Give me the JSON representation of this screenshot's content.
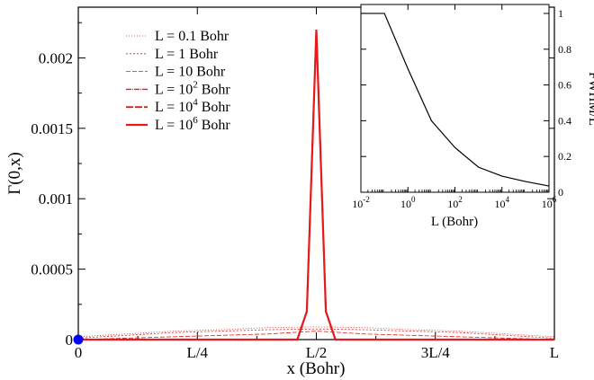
{
  "chart_data": [
    {
      "type": "line",
      "role": "main",
      "ylabel": "Γ(0,x)",
      "xlabel": "x (Bohr)",
      "ylim": [
        0,
        0.00236
      ],
      "xlim": [
        0,
        1
      ],
      "x_ticks": [
        {
          "value": 0,
          "label": "0"
        },
        {
          "value": 0.25,
          "label": "L/4"
        },
        {
          "value": 0.5,
          "label": "L/2"
        },
        {
          "value": 0.75,
          "label": "3L/4"
        },
        {
          "value": 1,
          "label": "L"
        }
      ],
      "y_ticks": [
        {
          "value": 0,
          "label": "0"
        },
        {
          "value": 0.0005,
          "label": "0.0005"
        },
        {
          "value": 0.001,
          "label": "0.001"
        },
        {
          "value": 0.0015,
          "label": "0.0015"
        },
        {
          "value": 0.002,
          "label": "0.002"
        }
      ],
      "grid": false,
      "legend_position": "top-left",
      "series": [
        {
          "name": "L = 0.1 Bohr",
          "legend_base": "L = 0.1 Bohr",
          "legend_exp": "",
          "color": "#e41a1c",
          "dash": "1,2",
          "width": 0.8,
          "x": [
            0,
            0.1,
            0.2,
            0.3,
            0.4,
            0.5,
            0.6,
            0.7,
            0.8,
            0.9,
            1.0
          ],
          "y": [
            2e-05,
            4e-05,
            6e-05,
            7e-05,
            8.5e-05,
            9e-05,
            8.5e-05,
            7e-05,
            6e-05,
            4e-05,
            2e-05
          ]
        },
        {
          "name": "L = 1 Bohr",
          "legend_base": "L = 1 Bohr",
          "legend_exp": "",
          "color": "#e41a1c",
          "dash": "2,2",
          "width": 0.8,
          "x": [
            0,
            0.1,
            0.2,
            0.3,
            0.4,
            0.5,
            0.6,
            0.7,
            0.8,
            0.9,
            1.0
          ],
          "y": [
            1e-05,
            3e-05,
            5e-05,
            6e-05,
            7e-05,
            7.5e-05,
            7e-05,
            6e-05,
            5e-05,
            3e-05,
            1e-05
          ]
        },
        {
          "name": "L = 10 Bohr",
          "legend_base": "L = 10 Bohr",
          "legend_exp": "",
          "color": "#e41a1c",
          "dash": "5,2",
          "width": 0.8,
          "x": [
            0,
            0.1,
            0.2,
            0.3,
            0.4,
            0.45,
            0.5,
            0.55,
            0.6,
            0.7,
            0.8,
            0.9,
            1.0
          ],
          "y": [
            0,
            1e-05,
            2e-05,
            3e-05,
            4e-05,
            5e-05,
            6e-05,
            5e-05,
            4e-05,
            3e-05,
            2e-05,
            1e-05,
            0
          ]
        },
        {
          "name": "L = 10^2 Bohr",
          "legend_base": "L = 10",
          "legend_exp": "2",
          "legend_tail": " Bohr",
          "color": "#e41a1c",
          "dash": "6,1,1,1",
          "width": 1.4,
          "x": [
            0,
            0.46,
            0.48,
            0.49,
            0.5,
            0.51,
            0.52,
            0.54,
            1.0
          ],
          "y": [
            0,
            0,
            0.0002,
            0.0012,
            0.0022,
            0.0012,
            0.0002,
            0,
            0
          ]
        },
        {
          "name": "L = 10^4 Bohr",
          "legend_base": "L = 10",
          "legend_exp": "4",
          "legend_tail": " Bohr",
          "color": "#e41a1c",
          "dash": "8,2",
          "width": 1.8,
          "x": [
            0,
            0.46,
            0.48,
            0.49,
            0.5,
            0.51,
            0.52,
            0.54,
            1.0
          ],
          "y": [
            0,
            0,
            0.0002,
            0.0012,
            0.0022,
            0.0012,
            0.0002,
            0,
            0
          ]
        },
        {
          "name": "L = 10^6 Bohr",
          "legend_base": "L = 10",
          "legend_exp": "6",
          "legend_tail": " Bohr",
          "color": "#e41a1c",
          "dash": "",
          "width": 2.2,
          "x": [
            0,
            0.46,
            0.48,
            0.49,
            0.5,
            0.51,
            0.52,
            0.54,
            1.0
          ],
          "y": [
            0,
            0,
            0.0002,
            0.0012,
            0.0022,
            0.0012,
            0.0002,
            0,
            0
          ]
        }
      ],
      "markers": [
        {
          "x": 0,
          "y": 0,
          "color": "#0000ff"
        }
      ]
    },
    {
      "type": "line",
      "role": "inset",
      "ylabel": "FWHM/L",
      "xlabel": "L (Bohr)",
      "xscale": "log",
      "xlim": [
        0.01,
        1000000
      ],
      "ylim": [
        0,
        1.05
      ],
      "x_ticks": [
        {
          "value": 0.01,
          "base": "10",
          "exp": "-2"
        },
        {
          "value": 1,
          "base": "10",
          "exp": "0"
        },
        {
          "value": 100,
          "base": "10",
          "exp": "2"
        },
        {
          "value": 10000,
          "base": "10",
          "exp": "4"
        },
        {
          "value": 1000000,
          "base": "10",
          "exp": "6"
        }
      ],
      "y_ticks": [
        {
          "value": 0,
          "label": "0"
        },
        {
          "value": 0.2,
          "label": "0.2"
        },
        {
          "value": 0.4,
          "label": "0.4"
        },
        {
          "value": 0.6,
          "label": "0.6"
        },
        {
          "value": 0.8,
          "label": "0.8"
        },
        {
          "value": 1,
          "label": "1"
        }
      ],
      "grid": false,
      "series": [
        {
          "color": "#000000",
          "x": [
            0.01,
            0.1,
            1,
            10,
            100,
            1000,
            10000,
            100000,
            1000000
          ],
          "y": [
            1.0,
            1.0,
            0.69,
            0.4,
            0.25,
            0.14,
            0.09,
            0.06,
            0.035
          ]
        }
      ]
    }
  ]
}
